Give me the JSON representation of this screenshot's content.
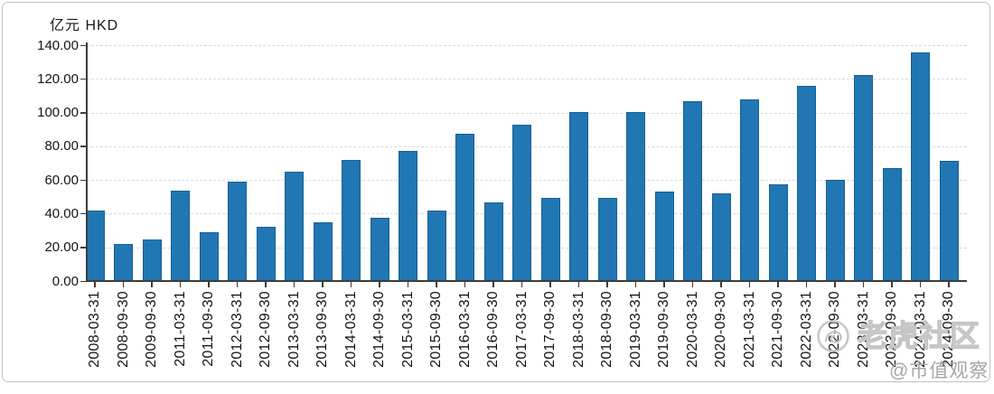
{
  "chart": {
    "unit_label": "亿元  HKD"
  },
  "chart_data": {
    "type": "bar",
    "title": "",
    "ylabel": "亿元 HKD",
    "xlabel": "",
    "ylim": [
      0,
      140
    ],
    "y_tick_interval": 20,
    "y_tick_labels": [
      "0.00",
      "20.00",
      "40.00",
      "60.00",
      "80.00",
      "100.00",
      "120.00",
      "140.00"
    ],
    "grid": "horizontal-dashed",
    "legend": "none",
    "bar_color": "#2077b4",
    "categories": [
      "2008-03-31",
      "2008-09-30",
      "2009-09-30",
      "2011-03-31",
      "2011-09-30",
      "2012-03-31",
      "2012-09-30",
      "2013-03-31",
      "2013-09-30",
      "2014-03-31",
      "2014-09-30",
      "2015-03-31",
      "2015-09-30",
      "2016-03-31",
      "2016-09-30",
      "2017-03-31",
      "2017-09-30",
      "2018-03-31",
      "2018-09-30",
      "2019-03-31",
      "2019-09-30",
      "2020-03-31",
      "2020-09-30",
      "2021-03-31",
      "2021-09-30",
      "2022-03-31",
      "2022-09-30",
      "2023-03-31",
      "2023-09-30",
      "2024-03-31",
      "2024-09-30"
    ],
    "values": [
      42.0,
      22.2,
      24.6,
      53.5,
      29.0,
      59.2,
      32.0,
      65.0,
      34.6,
      72.0,
      37.8,
      77.2,
      42.0,
      87.6,
      46.6,
      92.8,
      49.3,
      100.2,
      49.1,
      100.4,
      53.2,
      107.0,
      52.0,
      107.8,
      57.6,
      116.0,
      60.2,
      122.5,
      67.0,
      135.8,
      71.5
    ]
  },
  "watermark": {
    "community": "老虎社区",
    "handle": "@市值观察"
  }
}
